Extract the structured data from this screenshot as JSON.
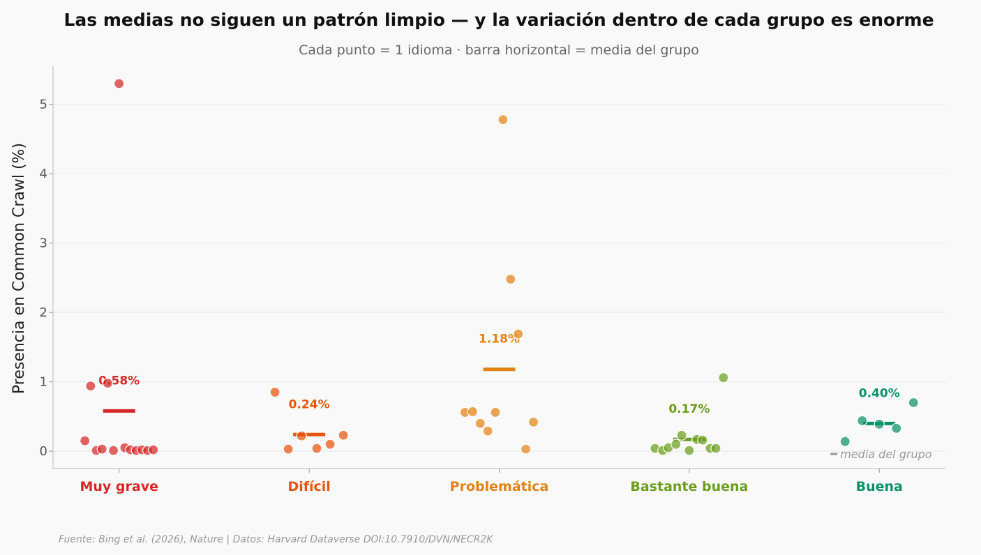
{
  "chart_data": {
    "type": "scatter",
    "title": "Las medias no siguen un patrón limpio — y la variación dentro de cada grupo es enorme",
    "subtitle": "Cada punto = 1 idioma · barra horizontal = media del grupo",
    "ylabel": "Presencia en Common Crawl (%)",
    "ylim": [
      -0.25,
      5.55
    ],
    "yticks": [
      0,
      1,
      2,
      3,
      4,
      5
    ],
    "grid": "horizontal",
    "legend": {
      "text": "media del grupo",
      "placement": "bottom-right"
    },
    "source": "Fuente: Bing et al. (2026), Nature | Datos: Harvard Dataverse DOI:10.7910/DVN/NECR2K",
    "groups": [
      {
        "category": "Muy grave",
        "color": "#d62728",
        "mean": 0.58,
        "mean_label": "0.58%",
        "points": [
          {
            "dx": -0.18,
            "y": 0.15
          },
          {
            "dx": -0.15,
            "y": 0.94
          },
          {
            "dx": -0.12,
            "y": 0.01
          },
          {
            "dx": -0.09,
            "y": 0.03
          },
          {
            "dx": -0.06,
            "y": 0.98
          },
          {
            "dx": -0.03,
            "y": 0.01
          },
          {
            "dx": 0.0,
            "y": 5.3
          },
          {
            "dx": 0.03,
            "y": 0.05
          },
          {
            "dx": 0.06,
            "y": 0.02
          },
          {
            "dx": 0.09,
            "y": 0.01
          },
          {
            "dx": 0.12,
            "y": 0.02
          },
          {
            "dx": 0.15,
            "y": 0.01
          },
          {
            "dx": 0.18,
            "y": 0.02
          }
        ]
      },
      {
        "category": "Difícil",
        "color": "#e6550d",
        "mean": 0.24,
        "mean_label": "0.24%",
        "points": [
          {
            "dx": -0.18,
            "y": 0.85
          },
          {
            "dx": -0.11,
            "y": 0.03
          },
          {
            "dx": -0.04,
            "y": 0.22
          },
          {
            "dx": 0.04,
            "y": 0.04
          },
          {
            "dx": 0.11,
            "y": 0.1
          },
          {
            "dx": 0.18,
            "y": 0.23
          }
        ]
      },
      {
        "category": "Problemática",
        "color": "#e08214",
        "mean": 1.18,
        "mean_label": "1.18%",
        "points": [
          {
            "dx": -0.18,
            "y": 0.56
          },
          {
            "dx": -0.14,
            "y": 0.57
          },
          {
            "dx": -0.1,
            "y": 0.4
          },
          {
            "dx": -0.06,
            "y": 0.29
          },
          {
            "dx": -0.02,
            "y": 0.56
          },
          {
            "dx": 0.02,
            "y": 4.78
          },
          {
            "dx": 0.06,
            "y": 2.48
          },
          {
            "dx": 0.1,
            "y": 1.69
          },
          {
            "dx": 0.14,
            "y": 0.03
          },
          {
            "dx": 0.18,
            "y": 0.42
          }
        ]
      },
      {
        "category": "Bastante buena",
        "color": "#6b9e1f",
        "mean": 0.17,
        "mean_label": "0.17%",
        "points": [
          {
            "dx": -0.18,
            "y": 0.04
          },
          {
            "dx": -0.14,
            "y": 0.01
          },
          {
            "dx": -0.11,
            "y": 0.05
          },
          {
            "dx": -0.07,
            "y": 0.1
          },
          {
            "dx": -0.04,
            "y": 0.23
          },
          {
            "dx": 0.0,
            "y": 0.01
          },
          {
            "dx": 0.04,
            "y": 0.17
          },
          {
            "dx": 0.07,
            "y": 0.16
          },
          {
            "dx": 0.11,
            "y": 0.04
          },
          {
            "dx": 0.14,
            "y": 0.04
          },
          {
            "dx": 0.18,
            "y": 1.06
          }
        ]
      },
      {
        "category": "Buena",
        "color": "#0a9068",
        "mean": 0.4,
        "mean_label": "0.40%",
        "points": [
          {
            "dx": -0.18,
            "y": 0.14
          },
          {
            "dx": -0.09,
            "y": 0.44
          },
          {
            "dx": 0.0,
            "y": 0.39
          },
          {
            "dx": 0.09,
            "y": 0.33
          },
          {
            "dx": 0.18,
            "y": 0.7
          }
        ]
      }
    ]
  }
}
